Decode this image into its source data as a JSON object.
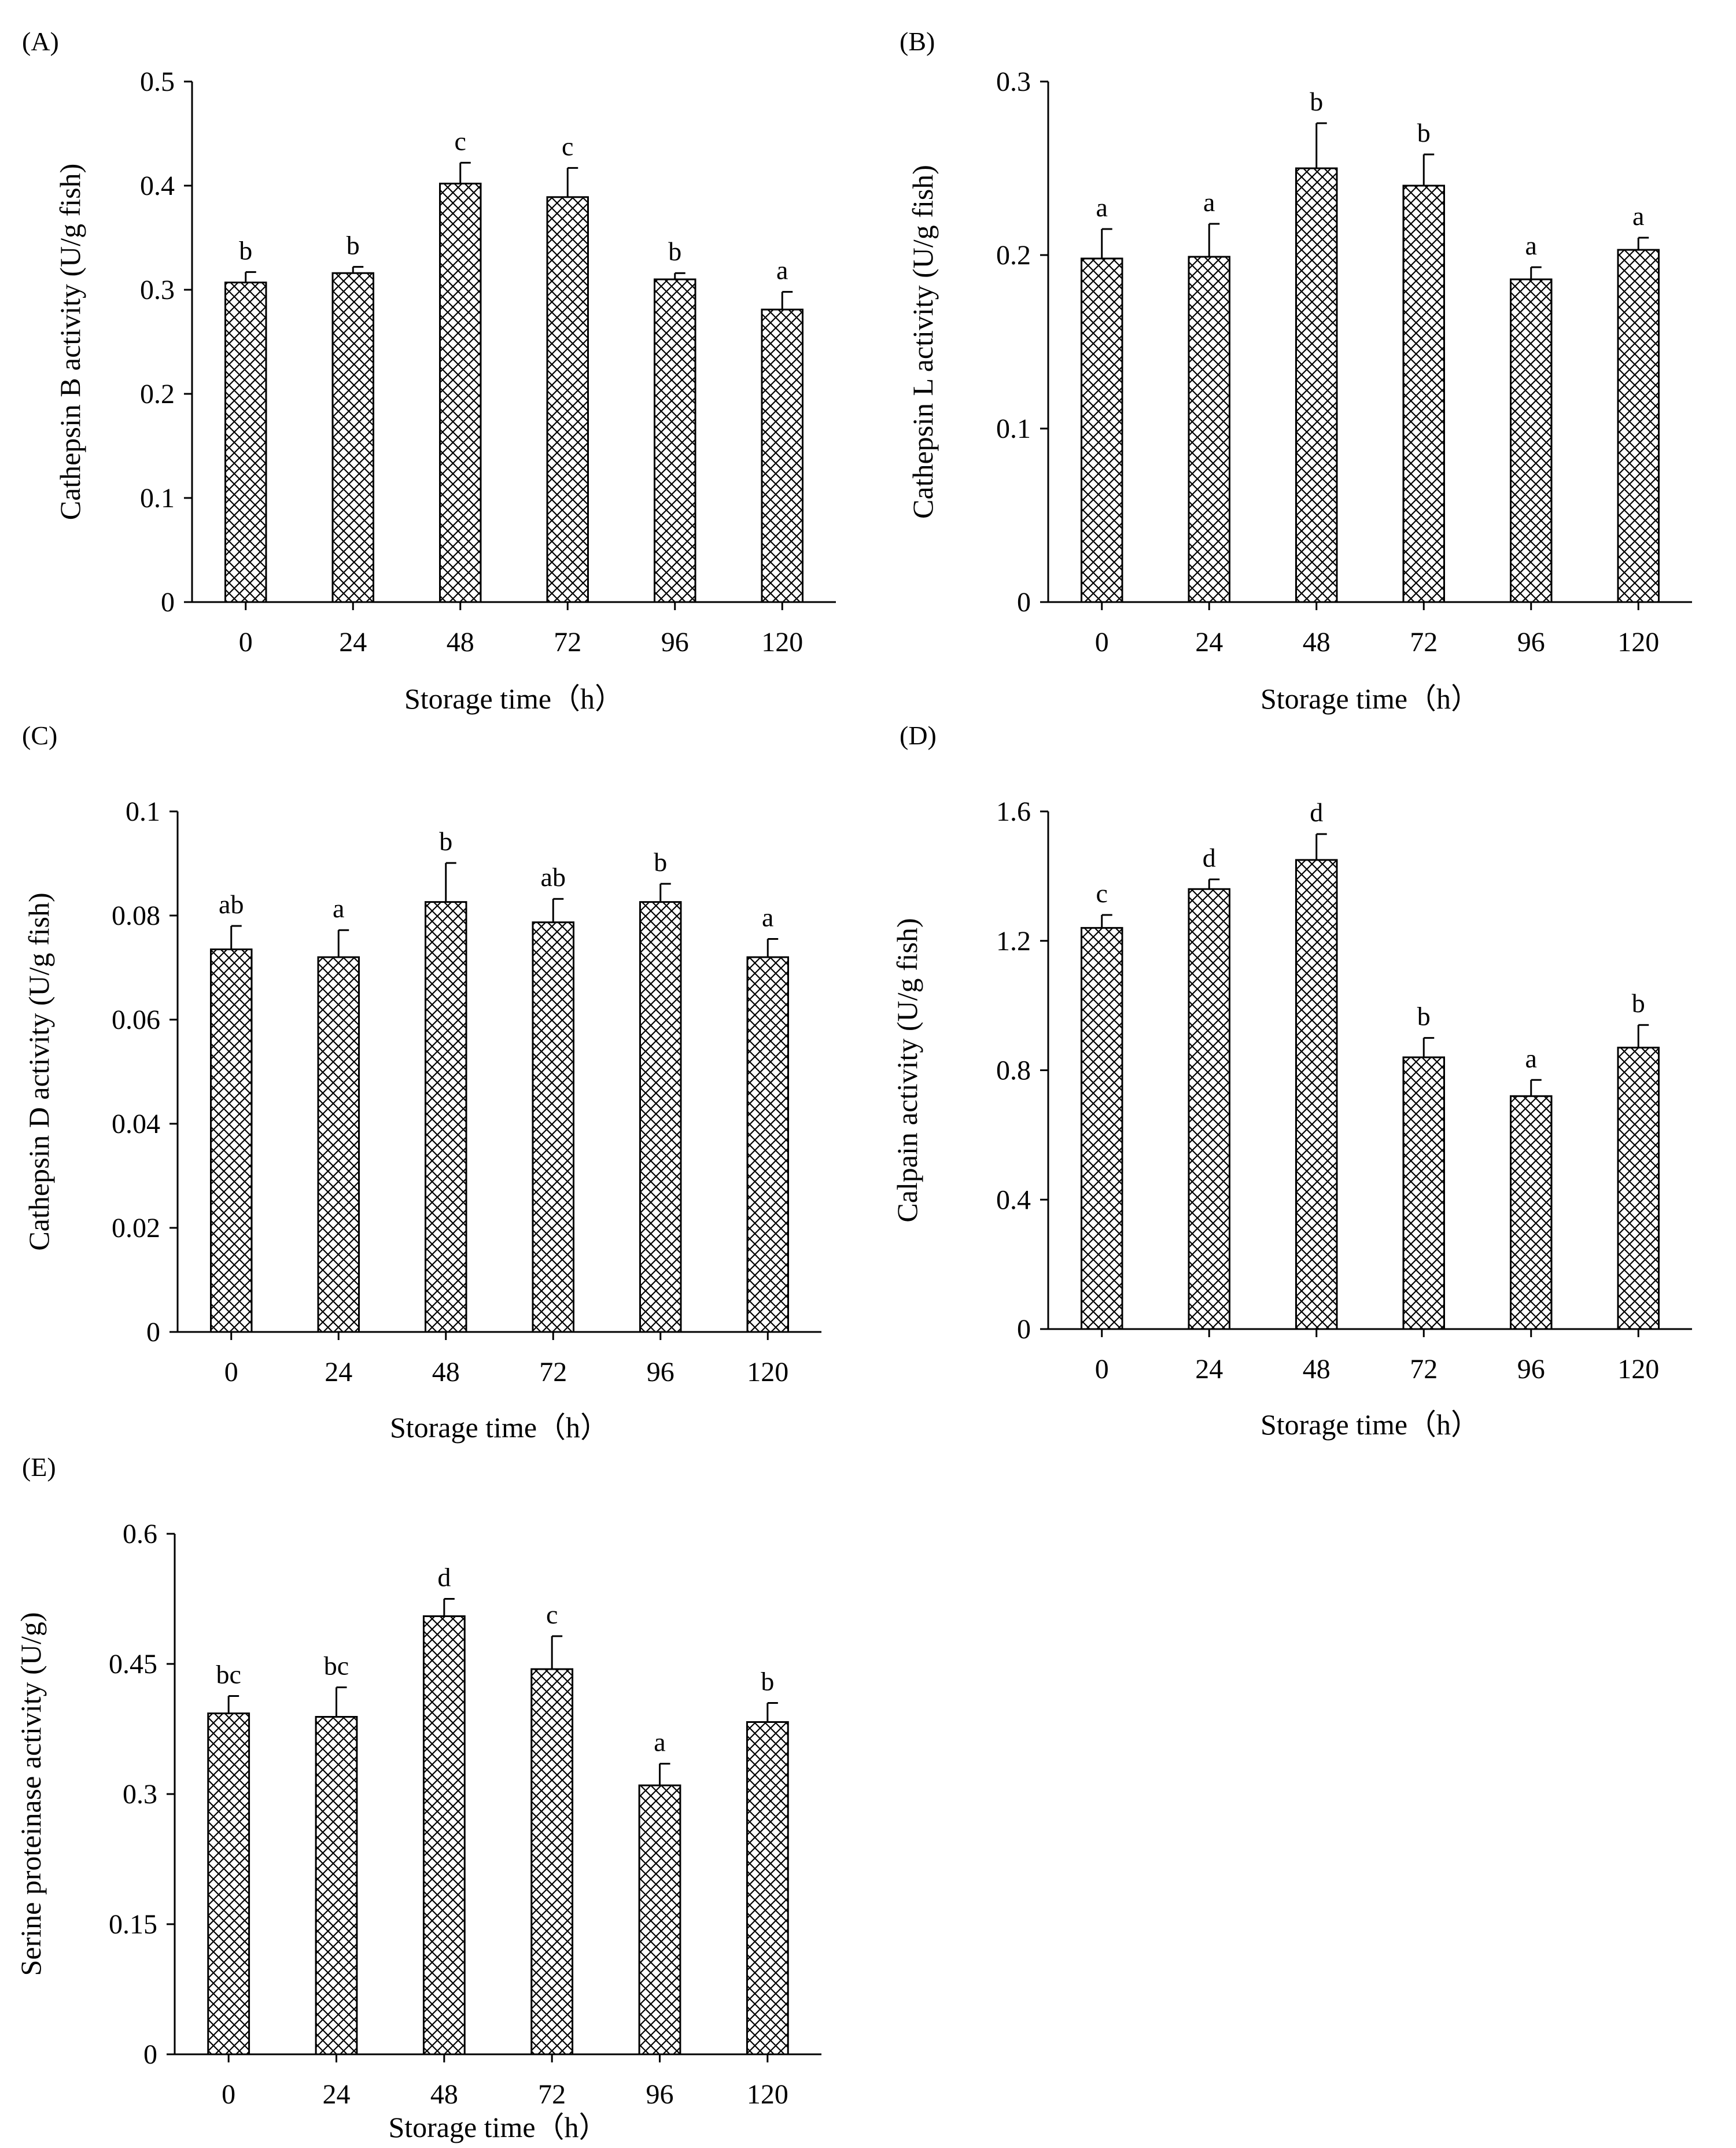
{
  "figure": {
    "colors": {
      "axis": "#000000",
      "bar_fill": "#ffffff",
      "hatch": "#000000",
      "error_bar": "#000000"
    }
  },
  "chart_data": [
    {
      "panel": "(A)",
      "type": "bar",
      "categories": [
        "0",
        "24",
        "48",
        "72",
        "96",
        "120"
      ],
      "values": [
        0.307,
        0.316,
        0.402,
        0.389,
        0.31,
        0.281
      ],
      "errors": [
        0.01,
        0.006,
        0.02,
        0.028,
        0.006,
        0.017
      ],
      "letters": [
        "b",
        "b",
        "c",
        "c",
        "b",
        "a"
      ],
      "xlabel": "Storage time（h）",
      "ylabel": "Cathepsin B activity (U/g fish)",
      "ylim": [
        0,
        0.5
      ],
      "yticks": [
        0,
        0.1,
        0.2,
        0.3,
        0.4,
        0.5
      ],
      "ytick_labels": [
        "0",
        "0.1",
        "0.2",
        "0.3",
        "0.4",
        "0.5"
      ],
      "grid": false
    },
    {
      "panel": "(B)",
      "type": "bar",
      "categories": [
        "0",
        "24",
        "48",
        "72",
        "96",
        "120"
      ],
      "values": [
        0.198,
        0.199,
        0.25,
        0.24,
        0.186,
        0.203
      ],
      "errors": [
        0.017,
        0.019,
        0.026,
        0.018,
        0.007,
        0.007
      ],
      "letters": [
        "a",
        "a",
        "b",
        "b",
        "a",
        "a"
      ],
      "xlabel": "Storage time（h）",
      "ylabel": "Cathepsin L activity (U/g fish)",
      "ylim": [
        0,
        0.3
      ],
      "yticks": [
        0,
        0.1,
        0.2,
        0.3
      ],
      "ytick_labels": [
        "0",
        "0.1",
        "0.2",
        "0.3"
      ],
      "grid": false
    },
    {
      "panel": "(C)",
      "type": "bar",
      "categories": [
        "0",
        "24",
        "48",
        "72",
        "96",
        "120"
      ],
      "values": [
        0.0735,
        0.072,
        0.0826,
        0.0787,
        0.0826,
        0.072
      ],
      "errors": [
        0.0045,
        0.0052,
        0.0075,
        0.0045,
        0.0035,
        0.0035
      ],
      "letters": [
        "ab",
        "a",
        "b",
        "ab",
        "b",
        "a"
      ],
      "xlabel": "Storage time（h）",
      "ylabel": "Cathepsin D activity (U/g fish)",
      "ylim": [
        0,
        0.1
      ],
      "yticks": [
        0,
        0.02,
        0.04,
        0.06,
        0.08,
        0.1
      ],
      "ytick_labels": [
        "0",
        "0.02",
        "0.04",
        "0.06",
        "0.08",
        "0.1"
      ],
      "grid": false
    },
    {
      "panel": "(D)",
      "type": "bar",
      "categories": [
        "0",
        "24",
        "48",
        "72",
        "96",
        "120"
      ],
      "values": [
        1.24,
        1.36,
        1.45,
        0.84,
        0.72,
        0.87
      ],
      "errors": [
        0.04,
        0.03,
        0.08,
        0.06,
        0.05,
        0.07
      ],
      "letters": [
        "c",
        "d",
        "d",
        "b",
        "a",
        "b"
      ],
      "xlabel": "Storage time（h）",
      "ylabel": "Calpain activity (U/g fish)",
      "ylim": [
        0,
        1.6
      ],
      "yticks": [
        0,
        0.4,
        0.8,
        1.2,
        1.6
      ],
      "ytick_labels": [
        "0",
        "0.4",
        "0.8",
        "1.2",
        "1.6"
      ],
      "grid": false
    },
    {
      "panel": "(E)",
      "type": "bar",
      "categories": [
        "0",
        "24",
        "48",
        "72",
        "96",
        "120"
      ],
      "values": [
        0.393,
        0.389,
        0.505,
        0.444,
        0.31,
        0.383
      ],
      "errors": [
        0.02,
        0.034,
        0.02,
        0.038,
        0.025,
        0.022
      ],
      "letters": [
        "bc",
        "bc",
        "d",
        "c",
        "a",
        "b"
      ],
      "xlabel": "Storage time（h）",
      "ylabel": "Serine proteinase  activity (U/g)",
      "ylim": [
        0,
        0.6
      ],
      "yticks": [
        0,
        0.15,
        0.3,
        0.45,
        0.6
      ],
      "ytick_labels": [
        "0",
        "0.15",
        "0.3",
        "0.45",
        "0.6"
      ],
      "grid": false
    }
  ]
}
